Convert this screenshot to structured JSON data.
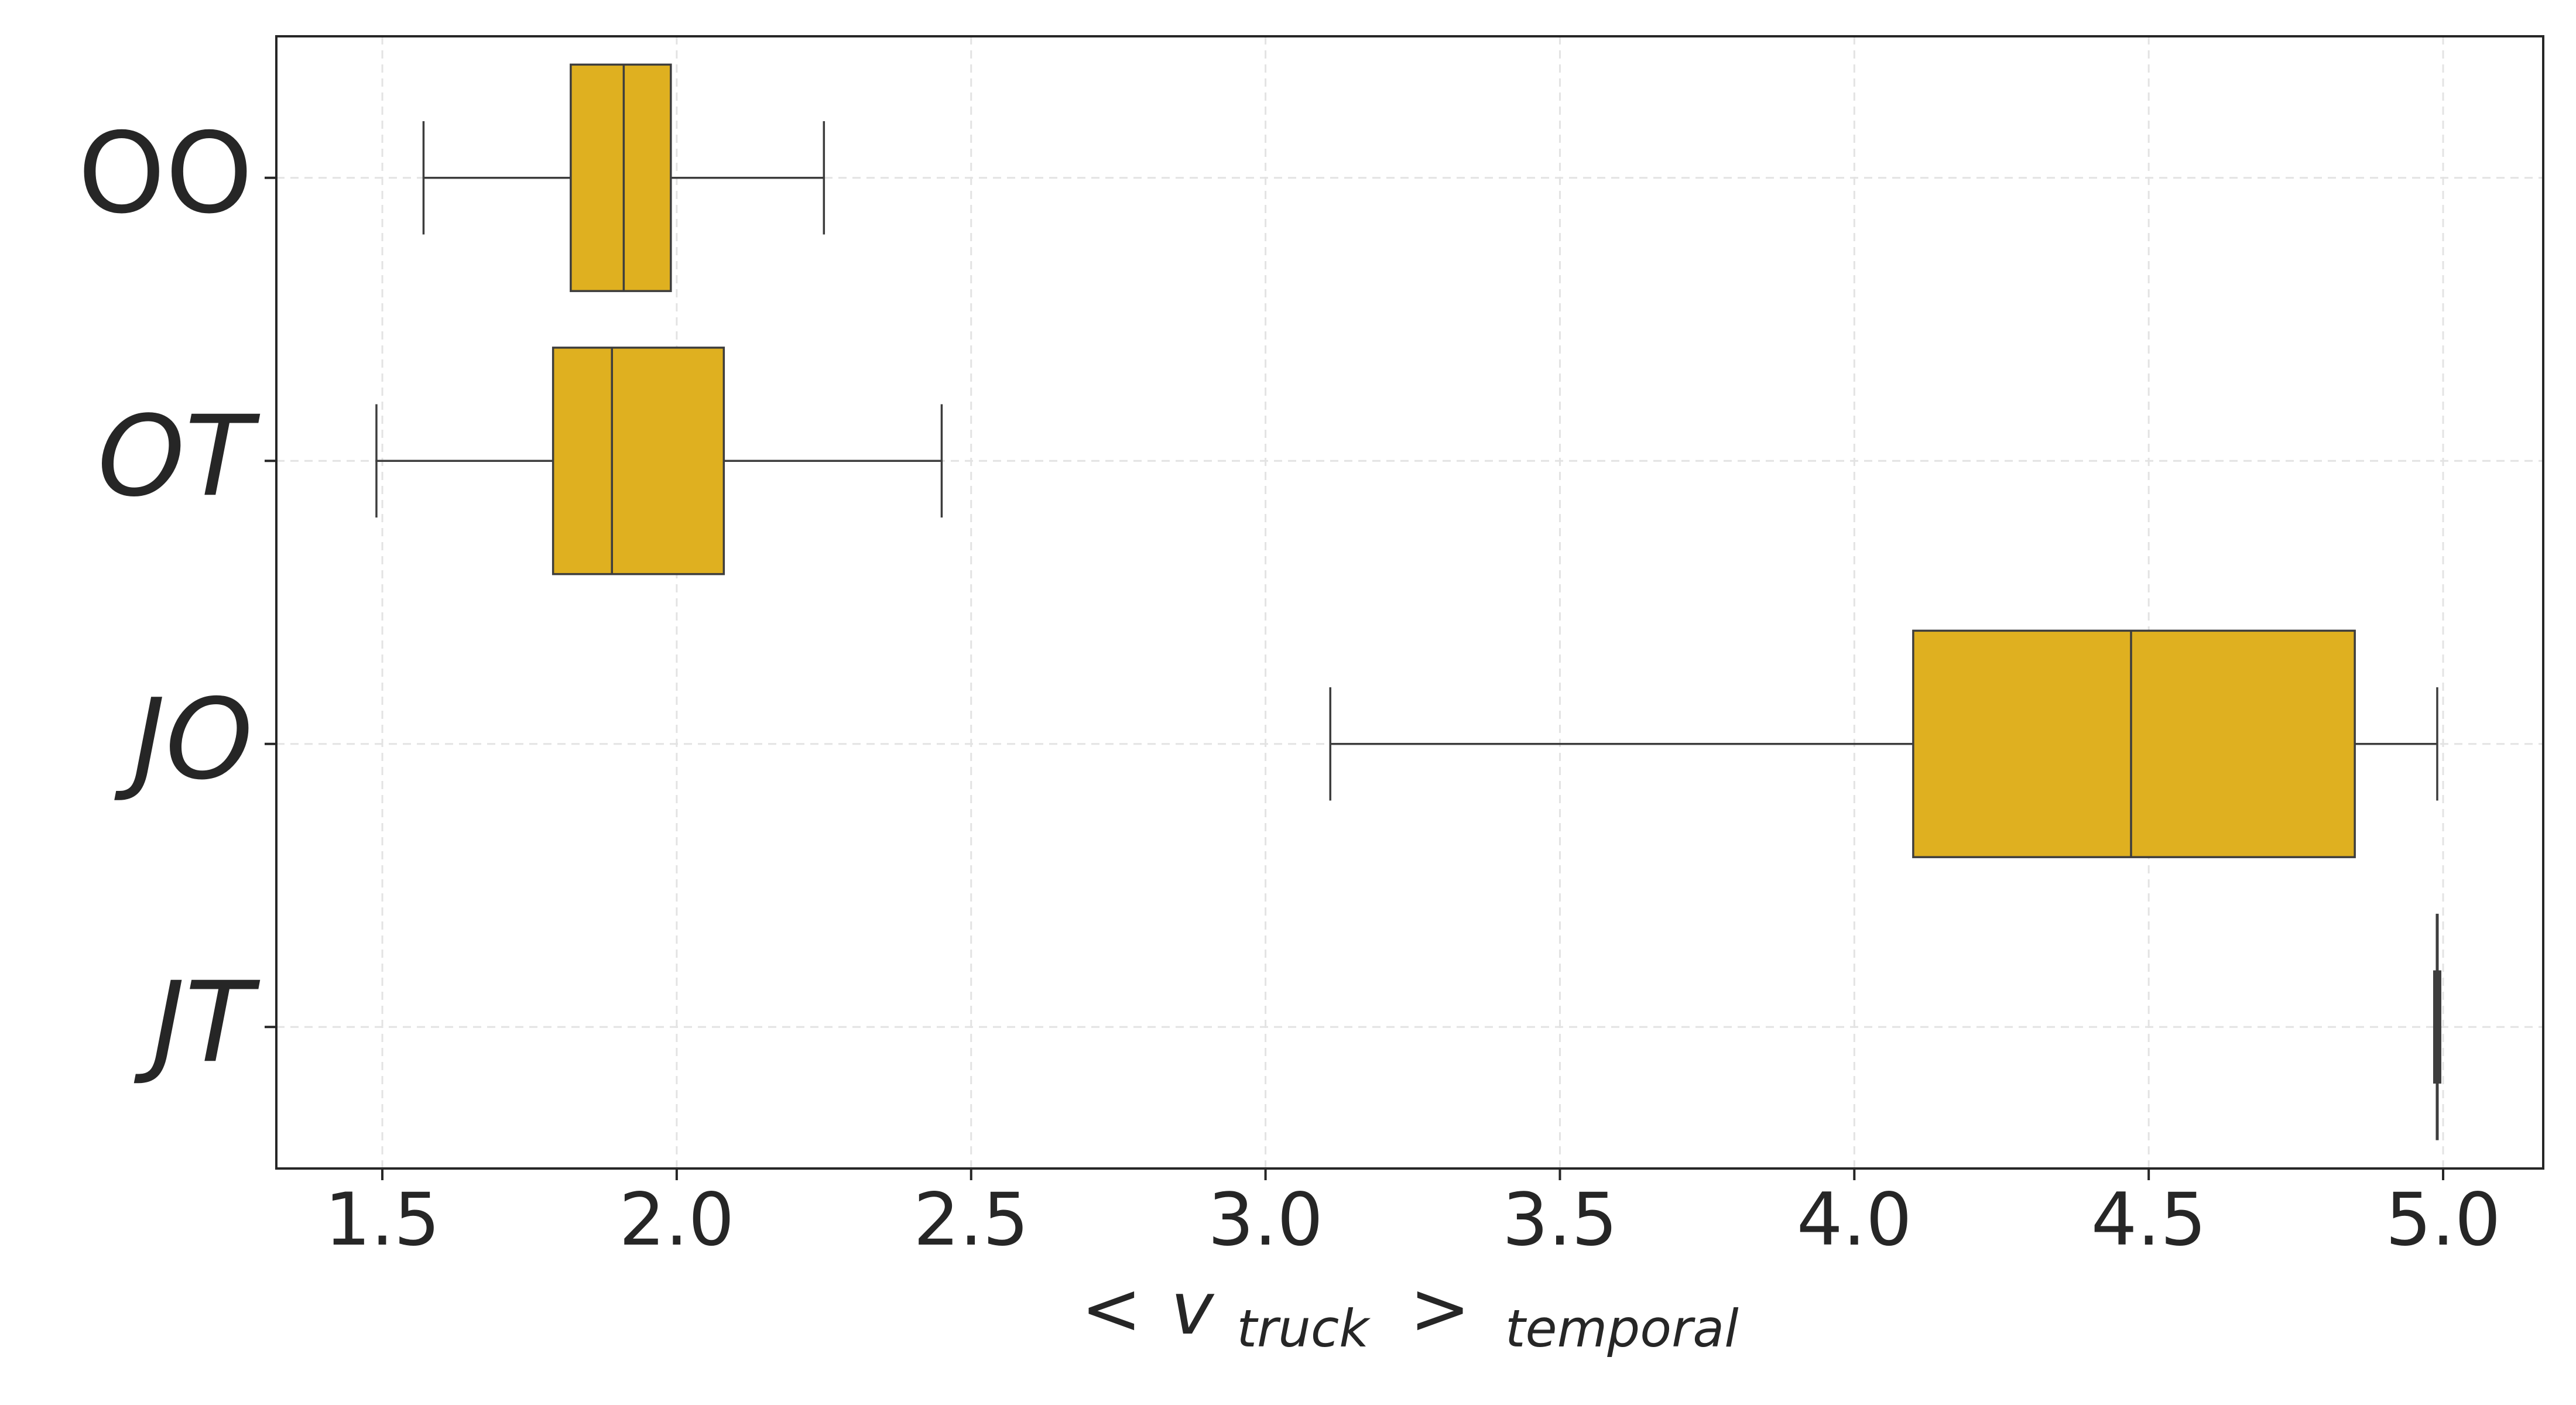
{
  "chart_data": {
    "type": "boxplot",
    "orientation": "horizontal",
    "title": "",
    "xlabel": {
      "lt": "<",
      "symbol": "v",
      "subscript": "truck",
      "gt": ">",
      "outer_subscript": "temporal"
    },
    "ylabel": "",
    "xlim": [
      1.32,
      5.17
    ],
    "xticks": [
      1.5,
      2.0,
      2.5,
      3.0,
      3.5,
      4.0,
      4.5,
      5.0
    ],
    "xtick_labels": [
      "1.5",
      "2.0",
      "2.5",
      "3.0",
      "3.5",
      "4.0",
      "4.5",
      "5.0"
    ],
    "grid": true,
    "box_color": "#DFB020",
    "line_color": "#3d3d3d",
    "categories": [
      {
        "base": "OO",
        "mark": "",
        "italic": false
      },
      {
        "base": "OT",
        "mark": "T",
        "italic": true
      },
      {
        "base": "JO",
        "mark": "J",
        "italic": true
      },
      {
        "base": "JT",
        "mark": "JT",
        "italic": true
      }
    ],
    "boxes": [
      {
        "category": "OO",
        "whisker_low": 1.57,
        "q1": 1.82,
        "median": 1.91,
        "q3": 1.99,
        "whisker_high": 2.25
      },
      {
        "category": "OT",
        "whisker_low": 1.49,
        "q1": 1.79,
        "median": 1.89,
        "q3": 2.08,
        "whisker_high": 2.45
      },
      {
        "category": "JO",
        "whisker_low": 3.11,
        "q1": 4.1,
        "median": 4.47,
        "q3": 4.85,
        "whisker_high": 4.99
      },
      {
        "category": "JT",
        "whisker_low": 4.99,
        "q1": 4.99,
        "median": 4.99,
        "q3": 4.99,
        "whisker_high": 4.99
      }
    ]
  }
}
